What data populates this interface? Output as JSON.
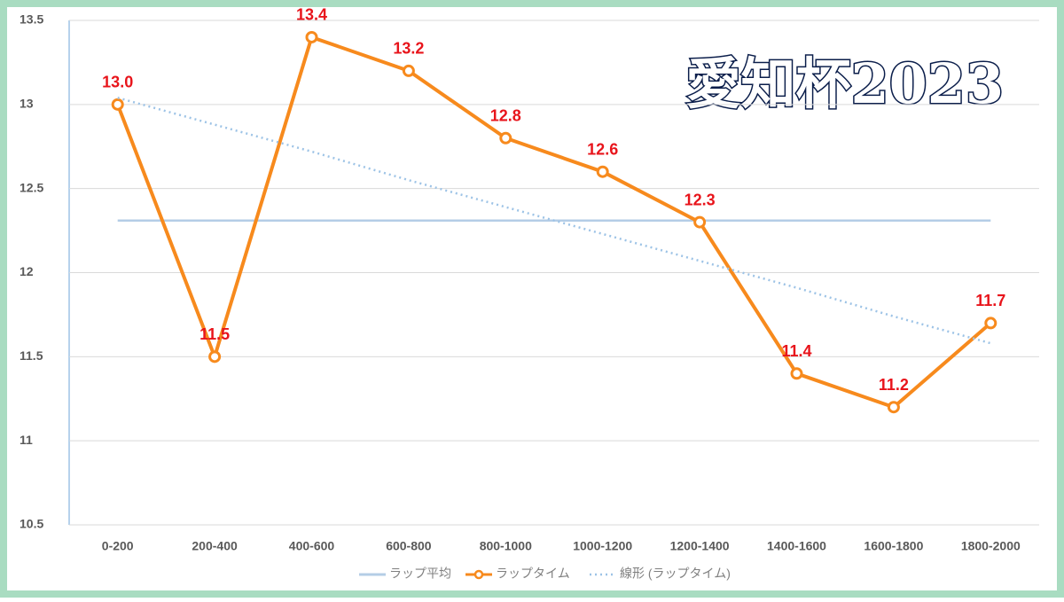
{
  "chart_data": {
    "type": "line",
    "title": "愛知杯2023",
    "categories": [
      "0-200",
      "200-400",
      "400-600",
      "600-800",
      "800-1000",
      "1000-1200",
      "1200-1400",
      "1400-1600",
      "1600-1800",
      "1800-2000"
    ],
    "series": [
      {
        "name": "ラップ平均",
        "color": "#b4cde6",
        "style": "solid",
        "marker": false,
        "values": [
          12.31,
          12.31,
          12.31,
          12.31,
          12.31,
          12.31,
          12.31,
          12.31,
          12.31,
          12.31
        ]
      },
      {
        "name": "ラップタイム",
        "color": "#f78a1d",
        "style": "solid",
        "marker": true,
        "values": [
          13.0,
          11.5,
          13.4,
          13.2,
          12.8,
          12.6,
          12.3,
          11.4,
          11.2,
          11.7
        ],
        "value_labels": [
          "13.0",
          "11.5",
          "13.4",
          "13.2",
          "12.8",
          "12.6",
          "12.3",
          "11.4",
          "11.2",
          "11.7"
        ]
      },
      {
        "name": "線形 (ラップタイム)",
        "color": "#9dc3e6",
        "style": "dotted",
        "marker": false,
        "values": [
          13.04,
          12.88,
          12.72,
          12.55,
          12.39,
          12.23,
          12.07,
          11.91,
          11.74,
          11.58
        ]
      }
    ],
    "ylim": [
      10.5,
      13.5
    ],
    "yticks": [
      10.5,
      11,
      11.5,
      12,
      12.5,
      13,
      13.5
    ],
    "grid": true,
    "legend": "bottom",
    "label_color": "#e8141b"
  }
}
